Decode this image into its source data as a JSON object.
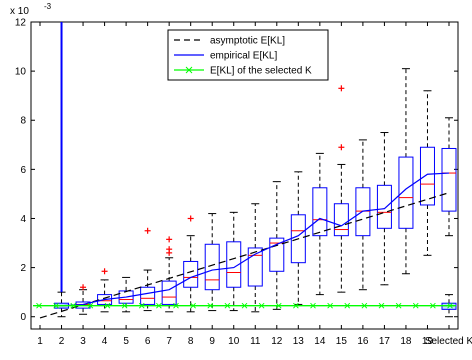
{
  "chart_data": {
    "type": "boxplot",
    "exponent_label": "x 10",
    "exponent_power": "-3",
    "categories": [
      "1",
      "2",
      "3",
      "4",
      "5",
      "6",
      "7",
      "8",
      "9",
      "10",
      "11",
      "12",
      "13",
      "14",
      "15",
      "16",
      "17",
      "18",
      "19",
      "Selected K"
    ],
    "yticks": [
      "0",
      "2",
      "4",
      "6",
      "8",
      "10",
      "12"
    ],
    "ylim": [
      -0.5,
      12
    ],
    "grid": false,
    "legend_position": "top-center",
    "legend": [
      {
        "label": "asymptotic E[KL]",
        "color": "#000000",
        "style": "dashed",
        "marker": ""
      },
      {
        "label": "empirical E[KL]",
        "color": "#0000ff",
        "style": "solid",
        "marker": ""
      },
      {
        "label": "E[KL] of the selected K",
        "color": "#00ff00",
        "style": "solid",
        "marker": "x"
      }
    ],
    "boxes": [
      {
        "category": "2",
        "whisker_low": 0.0,
        "q1": 0.35,
        "median": 0.45,
        "q3": 0.55,
        "whisker_high": 1.0,
        "outliers": []
      },
      {
        "category": "3",
        "whisker_low": 0.1,
        "q1": 0.35,
        "median": 0.5,
        "q3": 0.6,
        "whisker_high": 1.1,
        "outliers": [
          1.2
        ]
      },
      {
        "category": "4",
        "whisker_low": 0.2,
        "q1": 0.5,
        "median": 0.65,
        "q3": 0.9,
        "whisker_high": 1.5,
        "outliers": [
          1.85
        ]
      },
      {
        "category": "5",
        "whisker_low": 0.2,
        "q1": 0.55,
        "median": 0.7,
        "q3": 1.05,
        "whisker_high": 1.6,
        "outliers": []
      },
      {
        "category": "6",
        "whisker_low": 0.25,
        "q1": 0.5,
        "median": 0.75,
        "q3": 1.2,
        "whisker_high": 1.9,
        "outliers": [
          3.5
        ]
      },
      {
        "category": "7",
        "whisker_low": 0.2,
        "q1": 0.5,
        "median": 0.8,
        "q3": 1.45,
        "whisker_high": 2.4,
        "outliers": [
          2.6,
          2.75,
          3.15
        ]
      },
      {
        "category": "8",
        "whisker_low": 0.2,
        "q1": 1.2,
        "median": 1.6,
        "q3": 2.25,
        "whisker_high": 3.3,
        "outliers": [
          4.0
        ]
      },
      {
        "category": "9",
        "whisker_low": 0.25,
        "q1": 1.1,
        "median": 1.5,
        "q3": 2.95,
        "whisker_high": 4.2,
        "outliers": []
      },
      {
        "category": "10",
        "whisker_low": 0.25,
        "q1": 1.2,
        "median": 1.8,
        "q3": 3.05,
        "whisker_high": 4.25,
        "outliers": []
      },
      {
        "category": "11",
        "whisker_low": 0.2,
        "q1": 1.25,
        "median": 2.5,
        "q3": 2.8,
        "whisker_high": 4.6,
        "outliers": []
      },
      {
        "category": "12",
        "whisker_low": 0.3,
        "q1": 1.85,
        "median": 3.0,
        "q3": 3.2,
        "whisker_high": 5.5,
        "outliers": []
      },
      {
        "category": "13",
        "whisker_low": 0.5,
        "q1": 2.2,
        "median": 3.5,
        "q3": 4.15,
        "whisker_high": 5.9,
        "outliers": []
      },
      {
        "category": "14",
        "whisker_low": 0.9,
        "q1": 3.3,
        "median": 3.95,
        "q3": 5.25,
        "whisker_high": 6.65,
        "outliers": []
      },
      {
        "category": "15",
        "whisker_low": 1.0,
        "q1": 3.3,
        "median": 3.55,
        "q3": 4.6,
        "whisker_high": 6.2,
        "outliers": [
          6.9,
          9.3
        ]
      },
      {
        "category": "16",
        "whisker_low": 1.1,
        "q1": 3.3,
        "median": 4.3,
        "q3": 5.25,
        "whisker_high": 7.2,
        "outliers": []
      },
      {
        "category": "17",
        "whisker_low": 1.3,
        "q1": 3.6,
        "median": 4.25,
        "q3": 5.35,
        "whisker_high": 7.5,
        "outliers": []
      },
      {
        "category": "18",
        "whisker_low": 1.75,
        "q1": 3.6,
        "median": 4.85,
        "q3": 6.5,
        "whisker_high": 10.1,
        "outliers": []
      },
      {
        "category": "19",
        "whisker_low": 2.5,
        "q1": 4.55,
        "median": 5.4,
        "q3": 6.9,
        "whisker_high": 9.2,
        "outliers": []
      },
      {
        "category": "20",
        "whisker_low": 3.3,
        "q1": 4.3,
        "median": 5.85,
        "q3": 6.85,
        "whisker_high": 8.1,
        "outliers": []
      },
      {
        "category": "Selected K",
        "whisker_low": 0.0,
        "q1": 0.3,
        "median": 0.45,
        "q3": 0.55,
        "whisker_high": 0.9,
        "outliers": []
      }
    ],
    "outlier_spike": {
      "category": "2",
      "from": 1.0,
      "to": 12.0
    },
    "series": [
      {
        "name": "asymptotic E[KL]",
        "x": [
          1,
          20
        ],
        "y": [
          -0.05,
          5.05
        ]
      },
      {
        "name": "empirical E[KL]",
        "x": [
          2,
          3,
          4,
          5,
          6,
          7,
          8,
          9,
          10,
          11,
          12,
          13,
          14,
          15,
          16,
          17,
          18,
          19,
          20
        ],
        "y": [
          0.45,
          0.5,
          0.7,
          0.8,
          0.95,
          1.1,
          1.6,
          1.9,
          2.0,
          2.55,
          2.95,
          3.3,
          4.0,
          3.7,
          4.3,
          4.4,
          5.2,
          5.8,
          5.85
        ]
      },
      {
        "name": "E[KL] of the selected K",
        "x": [
          1,
          2,
          3,
          4,
          5,
          6,
          7,
          8,
          9,
          10,
          11,
          12,
          13,
          14,
          15,
          16,
          17,
          18,
          19,
          20,
          21
        ],
        "y": [
          0.45,
          0.45,
          0.45,
          0.45,
          0.45,
          0.45,
          0.45,
          0.45,
          0.45,
          0.45,
          0.45,
          0.45,
          0.45,
          0.45,
          0.45,
          0.45,
          0.45,
          0.45,
          0.45,
          0.45,
          0.45
        ]
      }
    ],
    "colors": {
      "box": "#0000ff",
      "median": "#ff0000",
      "whisker": "#000000",
      "outlier": "#ff0000",
      "selected": "#00ff00",
      "selected_box_fill": "#87cefa"
    }
  }
}
